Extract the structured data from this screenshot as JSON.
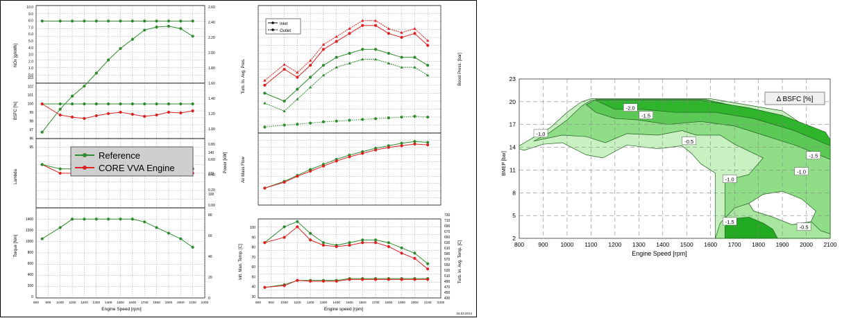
{
  "left_figure": {
    "legend": {
      "reference": "Reference",
      "core": "CORE VVA Engine"
    },
    "colors": {
      "reference": "#2e8b2e",
      "core": "#dd2222",
      "grid": "#9a9a9a",
      "legend_bg": "#cfcfcf"
    },
    "x_axis": {
      "label": "Engine Speed [rpm]",
      "ticks": [
        "800",
        "900",
        "1000",
        "1100",
        "1200",
        "1300",
        "1400",
        "1500",
        "1600",
        "1700",
        "1800",
        "1900",
        "2000",
        "2100",
        "2200"
      ]
    },
    "x_axis_right": {
      "label": "Engine speed [rpm]",
      "ticks": [
        "800",
        "900",
        "1000",
        "1100",
        "1200",
        "1300",
        "1400",
        "1500",
        "1600",
        "1700",
        "1800",
        "1900",
        "2000",
        "2100",
        "2200"
      ]
    },
    "labels": {
      "nox": "NOx [g/kWh]",
      "bsfc": "BSFC [%]",
      "lambda": "Lambda",
      "torque": "Torque [Nm]",
      "power": "Power [kW]",
      "turb_ratio": "Turb. In. Avg. Pres.",
      "boost": "Boost Press. [bar]",
      "air_mass": "Air Mass Flow",
      "inlet_temp": "Inlt. Man. Temp. [C]",
      "turb_temp": "Turb. In. Avg. Temp. [C]",
      "inlet_legend": "Inlet",
      "outlet_legend": "Outlet",
      "date": "18.03.2014"
    },
    "ticks": {
      "nox": [
        "10.0",
        "9.0",
        "8.0",
        "7.0",
        "6.0",
        "5.0",
        "4.0",
        "3.0",
        "2.0",
        "1.0",
        "0.0"
      ],
      "bsfc": [
        "103",
        "102",
        "101",
        "100",
        "99",
        "98",
        "97",
        "96",
        "95"
      ],
      "torque": [
        "1400",
        "1200",
        "1000",
        "800",
        "600",
        "400",
        "200",
        "0"
      ],
      "power_axis": [
        "2.60",
        "2.40",
        "2.20",
        "2.00",
        "1.80",
        "1.60",
        "1.40",
        "1.20",
        "1.00",
        "0.80",
        "0.60",
        "0.40",
        "0.20",
        "0.00"
      ],
      "power_axis2": [
        "",
        "",
        "",
        "",
        "",
        "",
        "",
        "140",
        "120",
        "100",
        "80",
        "60",
        "40",
        "20",
        "0"
      ],
      "inlet_temp": [
        "100",
        "90",
        "80",
        "70",
        "60",
        "50",
        "40",
        "30"
      ],
      "turb_temp": [
        "730",
        "710",
        "690",
        "670",
        "650",
        "630",
        "610",
        "590",
        "570",
        "550",
        "530",
        "510",
        "490",
        "470",
        "450",
        "430"
      ]
    }
  },
  "chart_data": [
    {
      "type": "line",
      "title": "",
      "x": [
        850,
        1000,
        1100,
        1200,
        1300,
        1400,
        1500,
        1600,
        1700,
        1800,
        1900,
        2000,
        2100
      ],
      "panels": [
        {
          "name": "NOx",
          "series": [
            {
              "name": "Reference",
              "values": [
                8.0,
                8.0,
                8.0,
                8.0,
                8.0,
                8.0,
                8.0,
                8.0,
                8.0,
                8.0,
                8.0,
                8.0,
                8.0
              ]
            },
            {
              "name": "CORE VVA Engine",
              "values": [
                8.0,
                8.0,
                8.0,
                8.0,
                8.0,
                8.0,
                8.0,
                8.0,
                8.0,
                8.0,
                8.0,
                8.0,
                8.0
              ]
            }
          ]
        },
        {
          "name": "Power",
          "series": [
            {
              "name": "Reference",
              "values": [
                0.95,
                1.25,
                1.42,
                1.55,
                1.72,
                1.89,
                2.04,
                2.16,
                2.28,
                2.32,
                2.33,
                2.3,
                2.2
              ]
            }
          ]
        },
        {
          "name": "BSFC",
          "series": [
            {
              "name": "Reference",
              "values": [
                100,
                100,
                100,
                100,
                100,
                100,
                100,
                100,
                100,
                100,
                100,
                100,
                100
              ]
            },
            {
              "name": "CORE VVA Engine",
              "values": [
                100,
                98.4,
                98.1,
                97.9,
                98.3,
                98.6,
                98.8,
                98.5,
                98.2,
                98.4,
                98.8,
                98.7,
                99.0
              ]
            }
          ]
        },
        {
          "name": "Lambda",
          "series": [
            {
              "name": "Reference",
              "values": [
                1.0,
                0.99,
                0.99,
                0.99,
                0.99,
                0.99,
                0.99,
                0.99,
                0.99,
                0.99,
                0.99,
                0.99,
                0.99
              ]
            },
            {
              "name": "CORE VVA Engine",
              "values": [
                1.0,
                0.98,
                0.98,
                0.98,
                0.98,
                0.98,
                0.98,
                0.98,
                0.98,
                0.98,
                0.98,
                0.98,
                0.98
              ]
            }
          ]
        },
        {
          "name": "Torque",
          "series": [
            {
              "name": "Reference",
              "values": [
                1050,
                1250,
                1400,
                1400,
                1400,
                1400,
                1400,
                1400,
                1350,
                1250,
                1150,
                1050,
                900
              ]
            }
          ]
        },
        {
          "name": "Boost",
          "series": [
            {
              "name": "Reference",
              "values": [
                1.8,
                1.6,
                1.9,
                2.2,
                2.5,
                2.7,
                2.8,
                2.9,
                2.9,
                2.8,
                2.7,
                2.7,
                2.5
              ]
            },
            {
              "name": "CORE VVA Engine",
              "values": [
                2.0,
                2.4,
                2.2,
                2.5,
                2.9,
                3.1,
                3.3,
                3.5,
                3.5,
                3.3,
                3.2,
                3.3,
                3.0
              ]
            }
          ]
        },
        {
          "name": "Air Mass Flow",
          "series": [
            {
              "name": "Reference",
              "values": [
                0.3,
                0.38,
                0.45,
                0.52,
                0.58,
                0.64,
                0.69,
                0.73,
                0.77,
                0.8,
                0.83,
                0.85,
                0.84
              ]
            },
            {
              "name": "CORE VVA Engine",
              "values": [
                0.3,
                0.37,
                0.44,
                0.5,
                0.56,
                0.62,
                0.67,
                0.71,
                0.75,
                0.78,
                0.8,
                0.82,
                0.81
              ]
            }
          ]
        },
        {
          "name": "Turb Temp",
          "series": [
            {
              "name": "Reference",
              "values": [
                640,
                700,
                720,
                675,
                640,
                630,
                640,
                650,
                650,
                640,
                620,
                600,
                560
              ]
            },
            {
              "name": "CORE VVA Engine",
              "values": [
                640,
                660,
                700,
                650,
                630,
                625,
                630,
                640,
                640,
                625,
                600,
                580,
                540
              ]
            }
          ]
        },
        {
          "name": "Inlet Temp",
          "series": [
            {
              "name": "Reference",
              "values": [
                32,
                35,
                40,
                40,
                40,
                40,
                42,
                42,
                42,
                42,
                42,
                42,
                42
              ]
            },
            {
              "name": "CORE VVA Engine",
              "values": [
                32,
                34,
                40,
                39,
                39,
                39,
                41,
                41,
                41,
                41,
                41,
                41,
                41
              ]
            }
          ]
        }
      ]
    },
    {
      "type": "contour",
      "title": "Δ BSFC [%]",
      "xlabel": "Engine Speed [rpm]",
      "ylabel": "BMEP [bar]",
      "x_ticks": [
        "800",
        "900",
        "1000",
        "1100",
        "1200",
        "1300",
        "1400",
        "1500",
        "1600",
        "1700",
        "1800",
        "1900",
        "2000",
        "2100"
      ],
      "y_ticks": [
        "2",
        "5",
        "8",
        "11",
        "14",
        "17",
        "20",
        "23"
      ],
      "xlim": [
        800,
        2100
      ],
      "ylim": [
        2,
        23
      ],
      "contour_labels": [
        {
          "text": "-2.0",
          "x": 1265,
          "y": 19.2
        },
        {
          "text": "-1.5",
          "x": 1330,
          "y": 18.2
        },
        {
          "text": "-1.0",
          "x": 890,
          "y": 15.8
        },
        {
          "text": "-0.5",
          "x": 1510,
          "y": 14.8
        },
        {
          "text": "-1.5",
          "x": 2030,
          "y": 12.9
        },
        {
          "text": "-1.0",
          "x": 1980,
          "y": 10.8
        },
        {
          "text": "-1.0",
          "x": 1680,
          "y": 9.8
        },
        {
          "text": "-1.5",
          "x": 1680,
          "y": 4.2
        },
        {
          "text": "-0.5",
          "x": 1990,
          "y": 3.5
        }
      ]
    }
  ]
}
